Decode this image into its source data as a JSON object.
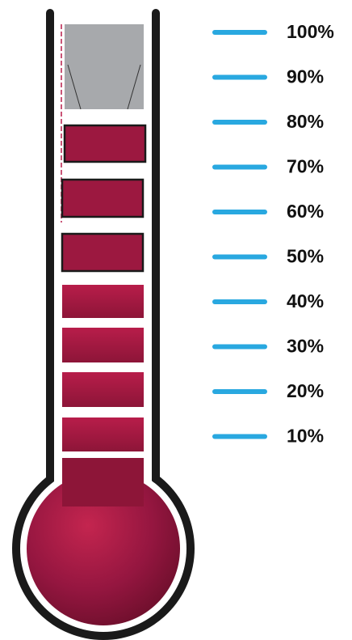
{
  "scale": {
    "labels": [
      "100%",
      "90%",
      "80%",
      "70%",
      "60%",
      "50%",
      "40%",
      "30%",
      "20%",
      "10%"
    ]
  }
}
